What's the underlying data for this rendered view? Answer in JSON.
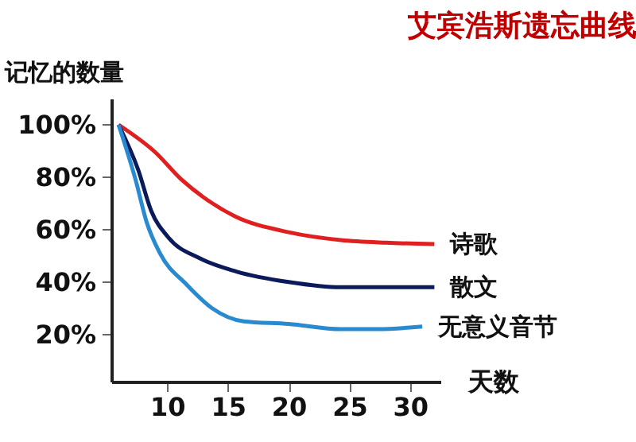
{
  "chart_data": {
    "type": "line",
    "title": "艾宾浩斯遗忘曲线",
    "xlabel": "天数",
    "ylabel": "记忆的数量",
    "xlim": [
      5.4,
      32.5
    ],
    "xticks": [
      10,
      15,
      20,
      25,
      30
    ],
    "ylim": [
      2,
      110
    ],
    "yticks": [
      {
        "value": 20,
        "label": "20%"
      },
      {
        "value": 40,
        "label": "40%"
      },
      {
        "value": 60,
        "label": "60%"
      },
      {
        "value": 80,
        "label": "80%"
      },
      {
        "value": 100,
        "label": "100%"
      }
    ],
    "grid": false,
    "legend": false,
    "marker": "none",
    "line_style": "solid",
    "series": [
      {
        "name": "诗歌",
        "color": "#e02020",
        "x": [
          6,
          9,
          11.2,
          13.4,
          15.6,
          20,
          24.3,
          28,
          32
        ],
        "values": [
          100,
          89.6,
          79,
          71,
          65,
          59,
          56,
          55,
          54.5
        ]
      },
      {
        "name": "散文",
        "color": "#0a1a5a",
        "x": [
          6,
          7.6,
          8.7,
          10.1,
          12.7,
          15.7,
          20,
          24.3,
          32
        ],
        "values": [
          100,
          83,
          67,
          57,
          49,
          44,
          40,
          38,
          38
        ]
      },
      {
        "name": "无意义音节",
        "color": "#2a8ad0",
        "x": [
          6,
          7.4,
          8.3,
          9.4,
          11.6,
          13.7,
          16.3,
          20,
          24.3,
          27.3,
          31
        ],
        "values": [
          100,
          79,
          63,
          51,
          39,
          30,
          25,
          24,
          22,
          22,
          23
        ]
      }
    ]
  }
}
